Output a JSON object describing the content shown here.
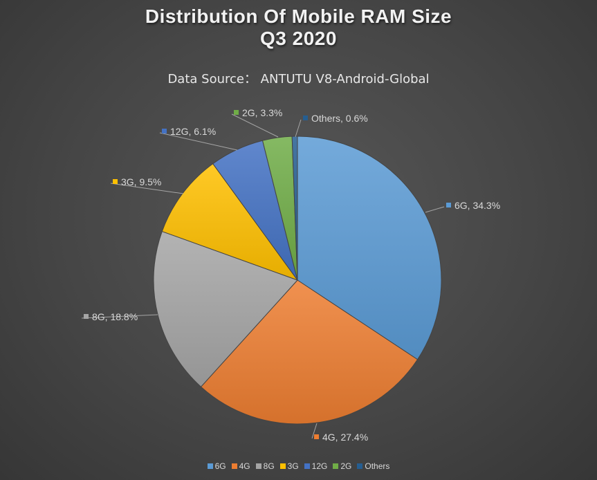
{
  "chart_data": {
    "type": "pie",
    "title": "Distribution Of Mobile RAM Size",
    "title_line2": "Q3 2020",
    "subtitle": "Data Source： ANTUTU V8-Android-Global",
    "categories": [
      "6G",
      "4G",
      "8G",
      "3G",
      "12G",
      "2G",
      "Others"
    ],
    "values": [
      34.3,
      27.4,
      18.8,
      9.5,
      6.1,
      3.3,
      0.6
    ],
    "unit": "%",
    "data_labels": [
      "6G, 34.3%",
      "4G, 27.4%",
      "8G, 18.8%",
      "3G, 9.5%",
      "12G, 6.1%",
      "2G, 3.3%",
      "Others, 0.6%"
    ],
    "colors": [
      "#5b9bd5",
      "#ed7d31",
      "#a5a5a5",
      "#ffc000",
      "#4472c4",
      "#70ad47",
      "#255e91"
    ],
    "legend_position": "bottom",
    "start_angle": "top, clockwise"
  }
}
